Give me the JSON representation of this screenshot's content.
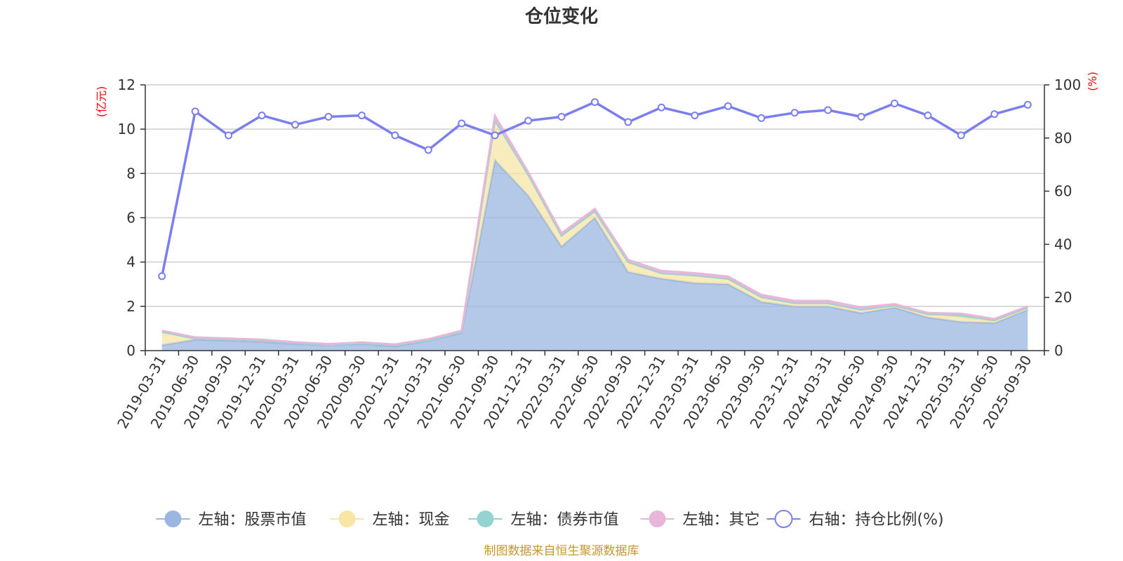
{
  "chart_data": {
    "type": "area",
    "title": "仓位变化",
    "left_axis": {
      "unit": "(亿元)",
      "ylim": [
        0,
        12
      ],
      "ticks": [
        0,
        2,
        4,
        6,
        8,
        10,
        12
      ]
    },
    "right_axis": {
      "unit": "(%)",
      "ylim": [
        0,
        100
      ],
      "ticks": [
        0,
        20,
        40,
        60,
        80,
        100
      ]
    },
    "categories": [
      "2019-03-31",
      "2019-06-30",
      "2019-09-30",
      "2019-12-31",
      "2020-03-31",
      "2020-06-30",
      "2020-09-30",
      "2020-12-31",
      "2021-03-31",
      "2021-06-30",
      "2021-09-30",
      "2021-12-31",
      "2022-03-31",
      "2022-06-30",
      "2022-09-30",
      "2022-12-31",
      "2023-03-31",
      "2023-06-30",
      "2023-09-30",
      "2023-12-31",
      "2024-03-31",
      "2024-06-30",
      "2024-09-30",
      "2024-12-31",
      "2025-03-31",
      "2025-06-30",
      "2025-09-30"
    ],
    "series": [
      {
        "name": "左轴：股票市值",
        "axis": "left",
        "type": "stacked-area",
        "color": "#9bb6e0",
        "values": [
          0.25,
          0.5,
          0.45,
          0.4,
          0.3,
          0.25,
          0.3,
          0.2,
          0.45,
          0.8,
          8.6,
          7.0,
          4.7,
          6.0,
          3.55,
          3.25,
          3.05,
          3.0,
          2.2,
          2.0,
          2.0,
          1.7,
          1.95,
          1.5,
          1.3,
          1.25,
          1.85
        ]
      },
      {
        "name": "左轴：现金",
        "axis": "left",
        "type": "stacked-area",
        "color": "#f7e6a6",
        "values": [
          0.6,
          0.05,
          0.05,
          0.05,
          0.05,
          0.02,
          0.04,
          0.05,
          0.02,
          0.05,
          1.8,
          0.95,
          0.5,
          0.3,
          0.45,
          0.25,
          0.35,
          0.25,
          0.22,
          0.15,
          0.15,
          0.15,
          0.1,
          0.15,
          0.22,
          0.08,
          0.1
        ]
      },
      {
        "name": "左轴：债券市值",
        "axis": "left",
        "type": "stacked-area",
        "color": "#93d4d2",
        "values": [
          0,
          0,
          0,
          0,
          0,
          0,
          0,
          0,
          0,
          0,
          0,
          0,
          0,
          0,
          0,
          0,
          0,
          0,
          0,
          0,
          0,
          0,
          0,
          0,
          0.1,
          0.05,
          0
        ]
      },
      {
        "name": "左轴：其它",
        "axis": "left",
        "type": "stacked-area",
        "color": "#e8b6d9",
        "values": [
          0.05,
          0.05,
          0.05,
          0.05,
          0.03,
          0.03,
          0.03,
          0.03,
          0.05,
          0.05,
          0.2,
          0.1,
          0.1,
          0.1,
          0.1,
          0.1,
          0.1,
          0.1,
          0.1,
          0.1,
          0.1,
          0.1,
          0.05,
          0.05,
          0.05,
          0.05,
          0.05
        ]
      },
      {
        "name": "右轴：持仓比例(%)",
        "axis": "right",
        "type": "line",
        "color": "#7b7ef0",
        "values": [
          28,
          90,
          81,
          88.5,
          85,
          88,
          88.5,
          81,
          75.5,
          85.5,
          81,
          86.5,
          88,
          93.5,
          86,
          91.5,
          88.5,
          92,
          87.5,
          89.5,
          90.5,
          88,
          93,
          88.5,
          81,
          89,
          92.5
        ]
      }
    ],
    "legend_position": "bottom",
    "grid": true
  },
  "source_text": "制图数据来自恒生聚源数据库"
}
